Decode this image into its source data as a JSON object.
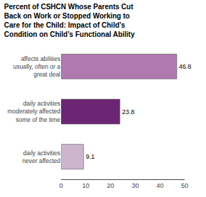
{
  "chart_data": {
    "type": "bar",
    "orientation": "horizontal",
    "title": "Percent of CSHCN Whose Parents Cut\nBack on Work or Stopped Working to\nCare for the Child: Impact of Child’s\nCondition on Child’s Functional Ability",
    "categories": [
      "daily activities\nnever affected",
      "daily activities\nmoderately affected\nsome of the time",
      "affects abilities\nusually, often or a\ngreat deal"
    ],
    "values": [
      9.1,
      23.8,
      46.8
    ],
    "colors": [
      "#cdb5cd",
      "#6b2572",
      "#b07ab0"
    ],
    "data_labels": true,
    "xlim": [
      0,
      50
    ],
    "xticks": [
      0,
      10,
      20,
      30,
      40,
      50
    ],
    "grid": false
  }
}
